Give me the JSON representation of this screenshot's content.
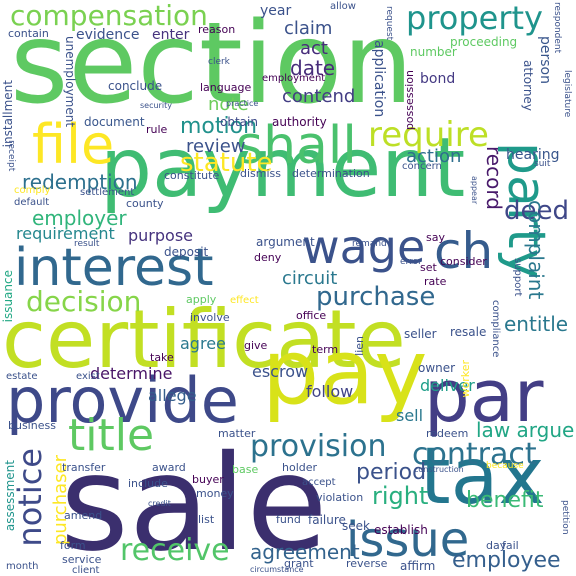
{
  "colors": {
    "background": "#ffffff",
    "palette": [
      "#440154",
      "#3b528b",
      "#21918c",
      "#5ec962",
      "#fde725",
      "#c5e021"
    ]
  },
  "words": [
    {
      "text": "section",
      "color": "#5ec962",
      "weight": 100
    },
    {
      "text": "sale",
      "color": "#3b2f6e",
      "weight": 95
    },
    {
      "text": "certificate",
      "color": "#c2df23",
      "weight": 90
    },
    {
      "text": "payment",
      "color": "#3fbc73",
      "weight": 85
    },
    {
      "text": "pay",
      "color": "#d8e219",
      "weight": 82
    },
    {
      "text": "tax",
      "color": "#23768e",
      "weight": 80
    },
    {
      "text": "provide",
      "color": "#3e4989",
      "weight": 78
    },
    {
      "text": "par",
      "color": "#433e85",
      "weight": 76
    },
    {
      "text": "interest",
      "color": "#31688e",
      "weight": 72
    },
    {
      "text": "file",
      "color": "#fde725",
      "weight": 70
    },
    {
      "text": "shall",
      "color": "#4ac16d",
      "weight": 68
    },
    {
      "text": "party",
      "color": "#1f9a8a",
      "weight": 66
    },
    {
      "text": "issue",
      "color": "#31688e",
      "weight": 64
    },
    {
      "text": "title",
      "color": "#5ec962",
      "weight": 62
    },
    {
      "text": "wage",
      "color": "#3b528b",
      "weight": 60
    },
    {
      "text": "ch",
      "color": "#365c8d",
      "weight": 58
    },
    {
      "text": "compensation",
      "color": "#7ad151",
      "weight": 56
    },
    {
      "text": "property",
      "color": "#1f948c",
      "weight": 55
    },
    {
      "text": "require",
      "color": "#bddf26",
      "weight": 54
    },
    {
      "text": "decision",
      "color": "#86d549",
      "weight": 52
    },
    {
      "text": "notice",
      "color": "#3e4a89",
      "weight": 50
    },
    {
      "text": "contract",
      "color": "#2c728e",
      "weight": 48
    },
    {
      "text": "provision",
      "color": "#2c728e",
      "weight": 47
    },
    {
      "text": "receive",
      "color": "#52c569",
      "weight": 46
    },
    {
      "text": "purchase",
      "color": "#31688e",
      "weight": 45
    },
    {
      "text": "employee",
      "color": "#355f8d",
      "weight": 44
    },
    {
      "text": "benefit",
      "color": "#3aba76",
      "weight": 42
    },
    {
      "text": "deed",
      "color": "#3f4788",
      "weight": 41
    },
    {
      "text": "right",
      "color": "#29af7f",
      "weight": 40
    },
    {
      "text": "period",
      "color": "#3b528b",
      "weight": 39
    },
    {
      "text": "agreement",
      "color": "#33638d",
      "weight": 38
    },
    {
      "text": "law argue",
      "color": "#21a685",
      "weight": 37
    },
    {
      "text": "circuit",
      "color": "#2a788e",
      "weight": 36
    },
    {
      "text": "statute",
      "color": "#fde725",
      "weight": 35
    },
    {
      "text": "motion",
      "color": "#21918c",
      "weight": 34
    },
    {
      "text": "redemption",
      "color": "#2d708e",
      "weight": 33
    },
    {
      "text": "employer",
      "color": "#31b57b",
      "weight": 32
    },
    {
      "text": "review",
      "color": "#3b528b",
      "weight": 31
    },
    {
      "text": "record",
      "color": "#48196b",
      "weight": 30
    },
    {
      "text": "complaint",
      "color": "#2a788e",
      "weight": 30
    },
    {
      "text": "purchaser",
      "color": "#fde725",
      "weight": 29
    },
    {
      "text": "entitle",
      "color": "#2a788e",
      "weight": 28
    },
    {
      "text": "action",
      "color": "#2e6e8e",
      "weight": 28
    },
    {
      "text": "date",
      "color": "#472c7a",
      "weight": 27
    },
    {
      "text": "claim",
      "color": "#3b528b",
      "weight": 27
    },
    {
      "text": "act",
      "color": "#472d7b",
      "weight": 26
    },
    {
      "text": "contend",
      "color": "#433d84",
      "weight": 26
    },
    {
      "text": "note",
      "color": "#6ccd5a",
      "weight": 25
    },
    {
      "text": "requirement",
      "color": "#24878e",
      "weight": 25
    },
    {
      "text": "purpose",
      "color": "#46337e",
      "weight": 24
    },
    {
      "text": "determine",
      "color": "#481467",
      "weight": 24
    },
    {
      "text": "allege",
      "color": "#355f8d",
      "weight": 23
    },
    {
      "text": "escrow",
      "color": "#3b528b",
      "weight": 23
    },
    {
      "text": "agree",
      "color": "#2a788e",
      "weight": 23
    },
    {
      "text": "deliver",
      "color": "#1f9e89",
      "weight": 22
    },
    {
      "text": "sell",
      "color": "#2a788e",
      "weight": 22
    },
    {
      "text": "follow",
      "color": "#414487",
      "weight": 22
    },
    {
      "text": "hearing",
      "color": "#39568c",
      "weight": 21
    },
    {
      "text": "application",
      "color": "#3b528b",
      "weight": 21
    },
    {
      "text": "year",
      "color": "#3b528b",
      "weight": 20
    },
    {
      "text": "unemployment",
      "color": "#3b528b",
      "weight": 18
    },
    {
      "text": "installment",
      "color": "#3b528b",
      "weight": 18
    },
    {
      "text": "assessment",
      "color": "#1f948c",
      "weight": 18
    },
    {
      "text": "issuance",
      "color": "#22a884",
      "weight": 17
    },
    {
      "text": "evidence",
      "color": "#3b528b",
      "weight": 17
    },
    {
      "text": "enter",
      "color": "#46337e",
      "weight": 16
    },
    {
      "text": "proceeding",
      "color": "#5ec962",
      "weight": 16
    },
    {
      "text": "attorney",
      "color": "#3b528b",
      "weight": 16
    },
    {
      "text": "person",
      "color": "#39568c",
      "weight": 16
    },
    {
      "text": "bond",
      "color": "#443983",
      "weight": 16
    },
    {
      "text": "number",
      "color": "#5ec962",
      "weight": 15
    },
    {
      "text": "possession",
      "color": "#440154",
      "weight": 15
    },
    {
      "text": "authority",
      "color": "#440154",
      "weight": 15
    },
    {
      "text": "obtain",
      "color": "#3e4a89",
      "weight": 15
    },
    {
      "text": "document",
      "color": "#39568c",
      "weight": 15
    },
    {
      "text": "conclude",
      "color": "#3b528b",
      "weight": 15
    },
    {
      "text": "rule",
      "color": "#440154",
      "weight": 14
    },
    {
      "text": "language",
      "color": "#440154",
      "weight": 14
    },
    {
      "text": "employment",
      "color": "#440154",
      "weight": 13
    },
    {
      "text": "dismiss",
      "color": "#3b528b",
      "weight": 14
    },
    {
      "text": "determination",
      "color": "#3b528b",
      "weight": 14
    },
    {
      "text": "constitute",
      "color": "#3b528b",
      "weight": 14
    },
    {
      "text": "county",
      "color": "#3b528b",
      "weight": 14
    },
    {
      "text": "settlement",
      "color": "#3b528b",
      "weight": 13
    },
    {
      "text": "default",
      "color": "#3b528b",
      "weight": 13
    },
    {
      "text": "comply",
      "color": "#fde725",
      "weight": 12
    },
    {
      "text": "argument",
      "color": "#3b528b",
      "weight": 14
    },
    {
      "text": "deposit",
      "color": "#3b528b",
      "weight": 14
    },
    {
      "text": "deny",
      "color": "#440154",
      "weight": 14
    },
    {
      "text": "office",
      "color": "#440154",
      "weight": 14
    },
    {
      "text": "apply",
      "color": "#5ec962",
      "weight": 14
    },
    {
      "text": "effect",
      "color": "#fde725",
      "weight": 13
    },
    {
      "text": "involve",
      "color": "#3b528b",
      "weight": 14
    },
    {
      "text": "give",
      "color": "#440154",
      "weight": 14
    },
    {
      "text": "term",
      "color": "#440154",
      "weight": 14
    },
    {
      "text": "seller",
      "color": "#3b528b",
      "weight": 14
    },
    {
      "text": "resale",
      "color": "#3b528b",
      "weight": 14
    },
    {
      "text": "owner",
      "color": "#3b528b",
      "weight": 14
    },
    {
      "text": "worker",
      "color": "#fde725",
      "weight": 13
    },
    {
      "text": "lien",
      "color": "#3b528b",
      "weight": 13
    },
    {
      "text": "take",
      "color": "#440154",
      "weight": 13
    },
    {
      "text": "exist",
      "color": "#3b528b",
      "weight": 13
    },
    {
      "text": "estate",
      "color": "#3b528b",
      "weight": 13
    },
    {
      "text": "business",
      "color": "#3b528b",
      "weight": 13
    },
    {
      "text": "matter",
      "color": "#3b528b",
      "weight": 13
    },
    {
      "text": "award",
      "color": "#3b528b",
      "weight": 13
    },
    {
      "text": "buyer",
      "color": "#440154",
      "weight": 13
    },
    {
      "text": "base",
      "color": "#5ec962",
      "weight": 13
    },
    {
      "text": "holder",
      "color": "#3b528b",
      "weight": 13
    },
    {
      "text": "redeem",
      "color": "#3b528b",
      "weight": 13
    },
    {
      "text": "transfer",
      "color": "#3b528b",
      "weight": 13
    },
    {
      "text": "include",
      "color": "#3b528b",
      "weight": 13
    },
    {
      "text": "money",
      "color": "#3b528b",
      "weight": 13
    },
    {
      "text": "accept",
      "color": "#3b528b",
      "weight": 12
    },
    {
      "text": "violation",
      "color": "#3b528b",
      "weight": 13
    },
    {
      "text": "amend",
      "color": "#3b528b",
      "weight": 13
    },
    {
      "text": "list",
      "color": "#3b528b",
      "weight": 13
    },
    {
      "text": "fund",
      "color": "#3b528b",
      "weight": 13
    },
    {
      "text": "failure",
      "color": "#3b528b",
      "weight": 13
    },
    {
      "text": "seek",
      "color": "#3b528b",
      "weight": 13
    },
    {
      "text": "establish",
      "color": "#440154",
      "weight": 13
    },
    {
      "text": "form",
      "color": "#3b528b",
      "weight": 13
    },
    {
      "text": "service",
      "color": "#3b528b",
      "weight": 13
    },
    {
      "text": "client",
      "color": "#3b528b",
      "weight": 13
    },
    {
      "text": "grant",
      "color": "#3b528b",
      "weight": 13
    },
    {
      "text": "reverse",
      "color": "#3b528b",
      "weight": 13
    },
    {
      "text": "affirm",
      "color": "#3b528b",
      "weight": 13
    },
    {
      "text": "fail",
      "color": "#3b528b",
      "weight": 13
    },
    {
      "text": "day",
      "color": "#3b528b",
      "weight": 13
    },
    {
      "text": "month",
      "color": "#3b528b",
      "weight": 11
    },
    {
      "text": "petition",
      "color": "#3b528b",
      "weight": 11
    },
    {
      "text": "legislature",
      "color": "#3b528b",
      "weight": 11
    },
    {
      "text": "consider",
      "color": "#440154",
      "weight": 13
    },
    {
      "text": "rate",
      "color": "#440154",
      "weight": 13
    },
    {
      "text": "say",
      "color": "#440154",
      "weight": 13
    },
    {
      "text": "compliance",
      "color": "#3b528b",
      "weight": 11
    },
    {
      "text": "support",
      "color": "#3b528b",
      "weight": 11
    },
    {
      "text": "respondent",
      "color": "#3b528b",
      "weight": 10
    },
    {
      "text": "request",
      "color": "#3b528b",
      "weight": 10
    },
    {
      "text": "contain",
      "color": "#3b528b",
      "weight": 11
    },
    {
      "text": "allow",
      "color": "#3b528b",
      "weight": 11
    },
    {
      "text": "reason",
      "color": "#440154",
      "weight": 12
    },
    {
      "text": "clerk",
      "color": "#3b528b",
      "weight": 10
    },
    {
      "text": "receipt",
      "color": "#3b528b",
      "weight": 10
    },
    {
      "text": "error",
      "color": "#3b528b",
      "weight": 10
    },
    {
      "text": "concern",
      "color": "#3b528b",
      "weight": 10
    },
    {
      "text": "suit",
      "color": "#3b528b",
      "weight": 10
    },
    {
      "text": "because",
      "color": "#fde725",
      "weight": 10
    },
    {
      "text": "construction",
      "color": "#3b528b",
      "weight": 9
    },
    {
      "text": "remand",
      "color": "#3b528b",
      "weight": 9
    },
    {
      "text": "set",
      "color": "#440154",
      "weight": 11
    },
    {
      "text": "credit",
      "color": "#3b528b",
      "weight": 9
    },
    {
      "text": "circumstance",
      "color": "#3b528b",
      "weight": 8
    },
    {
      "text": "result",
      "color": "#3b528b",
      "weight": 9
    },
    {
      "text": "appear",
      "color": "#3b528b",
      "weight": 9
    },
    {
      "text": "security",
      "color": "#3b528b",
      "weight": 9
    },
    {
      "text": "practice",
      "color": "#3b528b",
      "weight": 8
    }
  ]
}
